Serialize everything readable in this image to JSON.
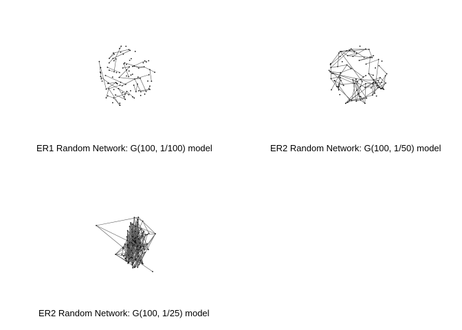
{
  "panels": [
    {
      "id": "er1",
      "caption": "ER1 Random Network: G(100, 1/100) model",
      "nodes": 100,
      "p": 0.01
    },
    {
      "id": "er2a",
      "caption": "ER2 Random Network: G(100, 1/50) model",
      "nodes": 100,
      "p": 0.02
    },
    {
      "id": "er2b",
      "caption": "ER2 Random Network: G(100, 1/25) model",
      "nodes": 100,
      "p": 0.04
    }
  ],
  "colors": {
    "edge": "#555555",
    "node": "#111111",
    "background": "#ffffff"
  }
}
